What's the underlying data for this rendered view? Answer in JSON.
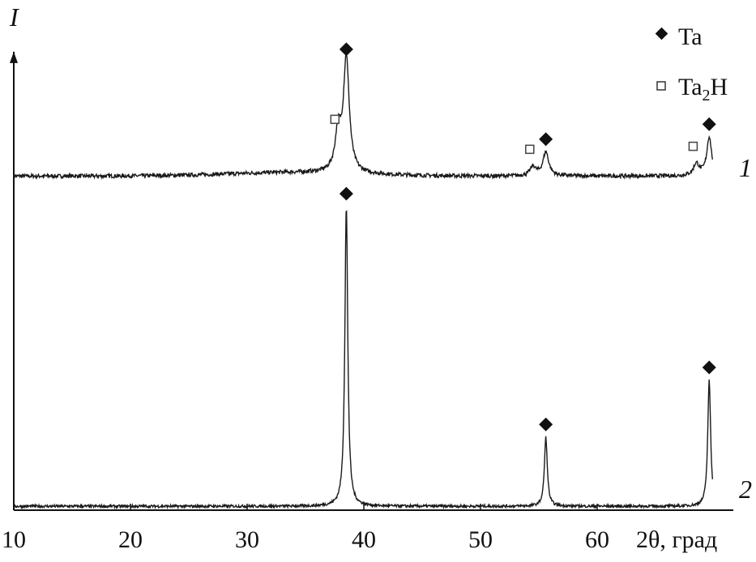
{
  "chart_data": {
    "type": "line",
    "title": "",
    "ylabel": "I",
    "xlabel": "2θ, град",
    "xlim": [
      10,
      70.5
    ],
    "ylim": [
      0,
      153
    ],
    "xticks": [
      10,
      20,
      30,
      40,
      50,
      60
    ],
    "grid": false,
    "legend_position": "top-right",
    "legend": [
      {
        "label": "Ta",
        "marker": "filled-diamond"
      },
      {
        "label_main": "Ta",
        "label_sub": "2",
        "label_end": "H",
        "marker": "open-square"
      }
    ],
    "series": [
      {
        "name": "1",
        "offset": 111,
        "x_range": [
          10,
          69.9
        ],
        "baseline": 0.5,
        "peaks": [
          {
            "x": 37.8,
            "height": 13,
            "width": 0.3,
            "phase": "Ta2H"
          },
          {
            "x": 38.5,
            "height": 38,
            "width": 0.3,
            "phase": "Ta"
          },
          {
            "x": 54.5,
            "height": 3,
            "width": 0.3,
            "phase": "Ta2H"
          },
          {
            "x": 55.6,
            "height": 8,
            "width": 0.3,
            "phase": "Ta"
          },
          {
            "x": 68.5,
            "height": 4,
            "width": 0.3,
            "phase": "Ta2H"
          },
          {
            "x": 69.6,
            "height": 13,
            "width": 0.25,
            "phase": "Ta"
          }
        ]
      },
      {
        "name": "2",
        "offset": 0,
        "x_range": [
          10,
          69.9
        ],
        "baseline": 1.3,
        "peaks": [
          {
            "x": 38.5,
            "height": 100,
            "width": 0.15,
            "phase": "Ta"
          },
          {
            "x": 55.6,
            "height": 23,
            "width": 0.15,
            "phase": "Ta"
          },
          {
            "x": 69.6,
            "height": 42,
            "width": 0.15,
            "phase": "Ta"
          }
        ]
      }
    ],
    "colors": {
      "line": "#1a1a1a",
      "marker": "#111111"
    }
  }
}
